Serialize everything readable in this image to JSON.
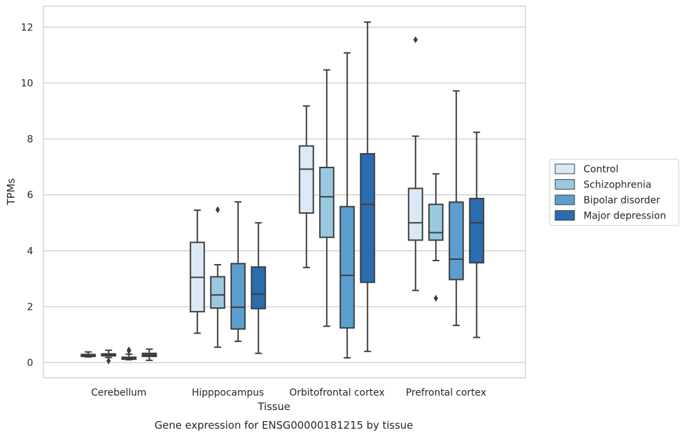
{
  "chart_data": {
    "type": "boxplot",
    "caption": "Gene expression for ENSG00000181215 by tissue",
    "xlabel": "Tissue",
    "ylabel": "TPMs",
    "ylim": [
      -0.5,
      12.8
    ],
    "yticks": [
      0,
      2,
      4,
      6,
      8,
      10,
      12
    ],
    "grid": "horizontal",
    "legend_position": "right",
    "categories": [
      "Cerebellum",
      "Hipppocampus",
      "Orbitofrontal cortex",
      "Prefrontal cortex"
    ],
    "series": [
      {
        "name": "Control",
        "color": "#dbe9f6",
        "boxes": [
          {
            "whisker_low": 0.2,
            "q1": 0.22,
            "median": 0.26,
            "q3": 0.29,
            "whisker_high": 0.38,
            "outliers": []
          },
          {
            "whisker_low": 1.05,
            "q1": 1.82,
            "median": 3.05,
            "q3": 4.3,
            "whisker_high": 5.45,
            "outliers": []
          },
          {
            "whisker_low": 3.4,
            "q1": 5.35,
            "median": 6.92,
            "q3": 7.75,
            "whisker_high": 9.18,
            "outliers": []
          },
          {
            "whisker_low": 2.58,
            "q1": 4.38,
            "median": 5.0,
            "q3": 6.23,
            "whisker_high": 8.1,
            "outliers": [
              11.55
            ]
          }
        ]
      },
      {
        "name": "Schizophrenia",
        "color": "#9ac8e0",
        "boxes": [
          {
            "whisker_low": 0.18,
            "q1": 0.24,
            "median": 0.28,
            "q3": 0.31,
            "whisker_high": 0.44,
            "outliers": [
              0.06
            ]
          },
          {
            "whisker_low": 0.55,
            "q1": 1.95,
            "median": 2.42,
            "q3": 3.07,
            "whisker_high": 3.5,
            "outliers": [
              5.47
            ]
          },
          {
            "whisker_low": 1.3,
            "q1": 4.48,
            "median": 5.93,
            "q3": 6.98,
            "whisker_high": 10.47,
            "outliers": []
          },
          {
            "whisker_low": 3.65,
            "q1": 4.38,
            "median": 4.65,
            "q3": 5.66,
            "whisker_high": 6.75,
            "outliers": [
              2.3
            ]
          }
        ]
      },
      {
        "name": "Bipolar disorder",
        "color": "#5a9fcf",
        "boxes": [
          {
            "whisker_low": 0.1,
            "q1": 0.12,
            "median": 0.15,
            "q3": 0.19,
            "whisker_high": 0.3,
            "outliers": [
              0.45,
              0.42
            ]
          },
          {
            "whisker_low": 0.76,
            "q1": 1.2,
            "median": 1.98,
            "q3": 3.54,
            "whisker_high": 5.75,
            "outliers": []
          },
          {
            "whisker_low": 0.17,
            "q1": 1.24,
            "median": 3.12,
            "q3": 5.58,
            "whisker_high": 11.08,
            "outliers": []
          },
          {
            "whisker_low": 1.33,
            "q1": 2.97,
            "median": 3.7,
            "q3": 5.74,
            "whisker_high": 9.72,
            "outliers": []
          }
        ]
      },
      {
        "name": "Major depression",
        "color": "#2a6cb0",
        "boxes": [
          {
            "whisker_low": 0.08,
            "q1": 0.22,
            "median": 0.27,
            "q3": 0.33,
            "whisker_high": 0.48,
            "outliers": []
          },
          {
            "whisker_low": 0.33,
            "q1": 1.93,
            "median": 2.45,
            "q3": 3.42,
            "whisker_high": 5.0,
            "outliers": []
          },
          {
            "whisker_low": 0.4,
            "q1": 2.87,
            "median": 5.66,
            "q3": 7.47,
            "whisker_high": 12.18,
            "outliers": []
          },
          {
            "whisker_low": 0.9,
            "q1": 3.57,
            "median": 5.0,
            "q3": 5.87,
            "whisker_high": 8.24,
            "outliers": []
          }
        ]
      }
    ]
  }
}
